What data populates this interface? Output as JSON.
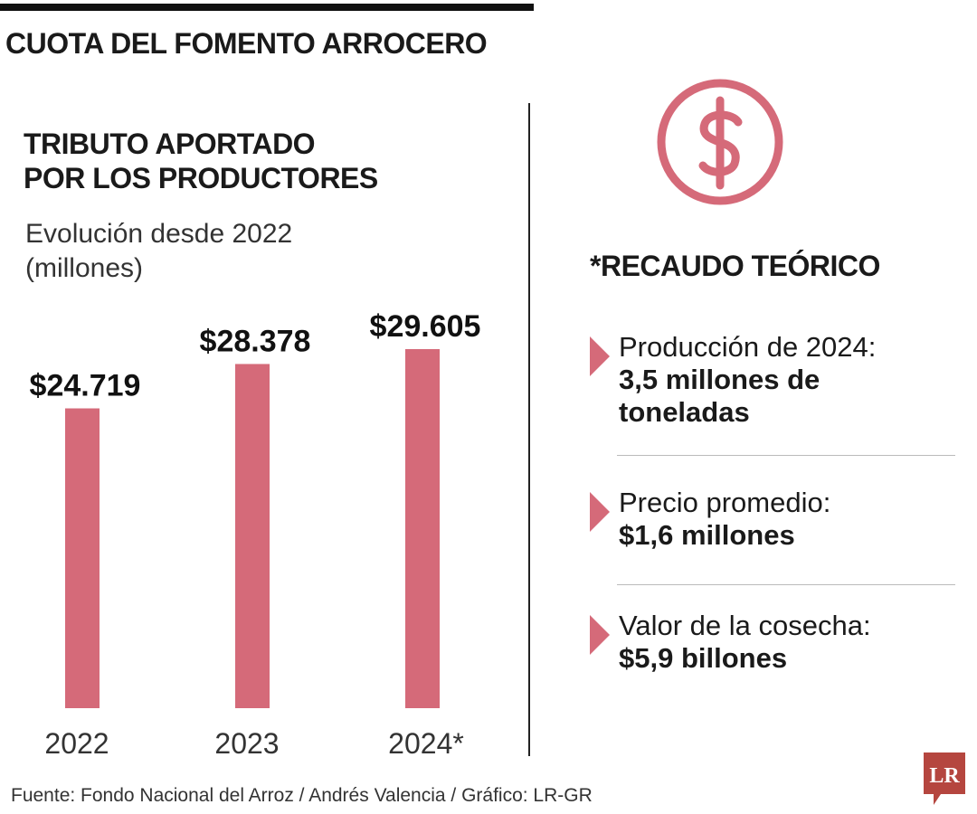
{
  "title": "CUOTA DEL FOMENTO ARROCERO",
  "subtitle_line1": "TRIBUTO APORTADO",
  "subtitle_line2": "POR LOS PRODUCTORES",
  "desc_line1": "Evolución desde 2022",
  "desc_line2": "(millones)",
  "colors": {
    "bar": "#d56a79",
    "icon": "#d56a79",
    "logo": "#b5463f",
    "text": "#1a1a1a"
  },
  "chart_data": {
    "type": "bar",
    "categories": [
      "2022",
      "2023",
      "2024*"
    ],
    "values": [
      24719,
      28378,
      29605
    ],
    "data_labels": [
      "$24.719",
      "$28.378",
      "$29.605"
    ],
    "title": "TRIBUTO APORTADO POR LOS PRODUCTORES",
    "ylabel": "",
    "xlabel": "",
    "ylim": [
      0,
      29605
    ],
    "grid": false
  },
  "right_panel": {
    "icon": "dollar-circle-icon",
    "title": "*RECAUDO TEÓRICO",
    "items": [
      {
        "label": "Producción de 2024:",
        "value_line1": "3,5 millones de",
        "value_line2": "toneladas"
      },
      {
        "label": "Precio promedio:",
        "value_line1": "$1,6 millones",
        "value_line2": ""
      },
      {
        "label": "Valor de la cosecha:",
        "value_line1": "$5,9 billones",
        "value_line2": ""
      }
    ]
  },
  "source": "Fuente: Fondo Nacional del Arroz / Andrés Valencia / Gráfico: LR-GR",
  "logo_text": "LR"
}
